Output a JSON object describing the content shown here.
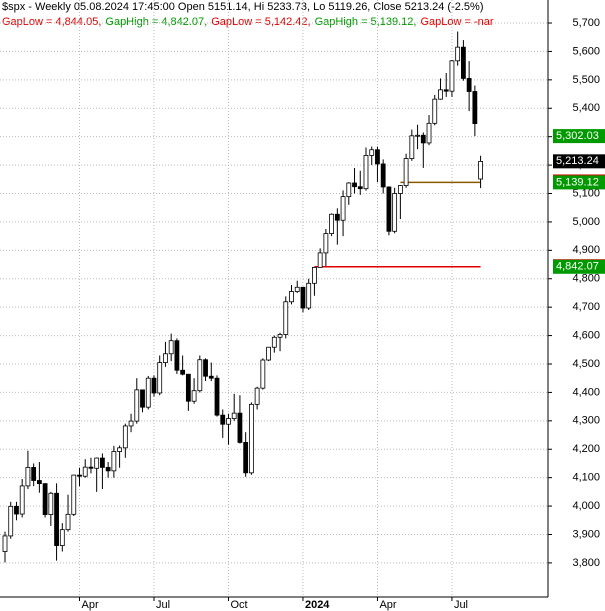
{
  "chart_data": {
    "type": "candlestick",
    "title": "$spx - Weekly 05.08.2024 17:45:00 Open 5151.14, Hi 5233.73, Lo 5119.26, Close 5213.24 (-2.5%)",
    "legend": [
      {
        "text": "GapLow = 4,844.05,",
        "color": "#e00000"
      },
      {
        "text": "GapHigh = 4,842.07,",
        "color": "#009900"
      },
      {
        "text": "GapLow = 5,142.42,",
        "color": "#e00000"
      },
      {
        "text": "GapHigh = 5,139.12,",
        "color": "#009900"
      },
      {
        "text": "GapLow = -nar",
        "color": "#e00000"
      }
    ],
    "categories": [
      null,
      null,
      null,
      null,
      null,
      null,
      null,
      null,
      null,
      null,
      null,
      null,
      null,
      "Apr",
      null,
      null,
      null,
      null,
      null,
      null,
      null,
      null,
      null,
      null,
      null,
      null,
      "Jul",
      null,
      null,
      null,
      null,
      null,
      null,
      null,
      null,
      null,
      null,
      null,
      null,
      "Oct",
      null,
      null,
      null,
      null,
      null,
      null,
      null,
      null,
      null,
      null,
      null,
      null,
      "2024",
      null,
      null,
      null,
      null,
      null,
      null,
      null,
      null,
      null,
      null,
      null,
      null,
      "Apr",
      null,
      null,
      null,
      null,
      null,
      null,
      null,
      null,
      null,
      null,
      null,
      null,
      "Jul",
      null,
      null,
      null,
      null,
      null
    ],
    "open": [
      3840,
      3895,
      3999,
      3972,
      4071,
      4136,
      4090,
      4079,
      3970,
      4045,
      3861,
      3917,
      3971,
      4109,
      4105,
      4137,
      4133,
      4169,
      4136,
      4124,
      4192,
      4205,
      4282,
      4299,
      4409,
      4348,
      4450,
      4398,
      4505,
      4536,
      4582,
      4478,
      4464,
      4369,
      4406,
      4515,
      4457,
      4450,
      4320,
      4288,
      4308,
      4327,
      4224,
      4117,
      4358,
      4415,
      4514,
      4559,
      4594,
      4604,
      4719,
      4755,
      4770,
      4697,
      4784,
      4840,
      4891,
      4959,
      5027,
      5006,
      5089,
      5137,
      5124,
      5117,
      5234,
      5254,
      5204,
      5123,
      4967,
      5100,
      5128,
      5223,
      5303,
      5305,
      5278,
      5347,
      5432,
      5465,
      5460,
      5567,
      5615,
      5505,
      5459,
      5151
    ],
    "high": [
      3910,
      4015,
      4015,
      4095,
      4195,
      4150,
      4155,
      4080,
      4050,
      4080,
      3940,
      4040,
      4110,
      4135,
      4165,
      4170,
      4171,
      4185,
      4155,
      4212,
      4213,
      4290,
      4325,
      4450,
      4410,
      4458,
      4460,
      4530,
      4578,
      4607,
      4590,
      4530,
      4465,
      4450,
      4530,
      4520,
      4505,
      4460,
      4340,
      4325,
      4395,
      4390,
      4260,
      4365,
      4420,
      4520,
      4560,
      4600,
      4610,
      4738,
      4778,
      4793,
      4770,
      4800,
      4842,
      4907,
      4975,
      5030,
      5048,
      5111,
      5140,
      5190,
      5180,
      5262,
      5265,
      5265,
      5220,
      5125,
      5120,
      5130,
      5240,
      5325,
      5342,
      5315,
      5376,
      5447,
      5505,
      5524,
      5570,
      5670,
      5640,
      5566,
      5480,
      5233
    ],
    "low": [
      3802,
      3885,
      3950,
      3960,
      4060,
      4070,
      4047,
      3960,
      3930,
      3808,
      3840,
      3910,
      3965,
      4070,
      4100,
      4115,
      4050,
      4060,
      4100,
      4100,
      4135,
      4170,
      4260,
      4290,
      4330,
      4340,
      4385,
      4390,
      4490,
      4510,
      4465,
      4460,
      4335,
      4360,
      4400,
      4440,
      4440,
      4315,
      4240,
      4216,
      4300,
      4220,
      4103,
      4110,
      4340,
      4410,
      4510,
      4540,
      4545,
      4590,
      4710,
      4750,
      4682,
      4690,
      4740,
      4844,
      4845,
      4950,
      4920,
      4950,
      5060,
      5100,
      5095,
      5110,
      5200,
      5140,
      5100,
      4953,
      4960,
      5010,
      5120,
      5215,
      5256,
      5190,
      5270,
      5340,
      5430,
      5440,
      5440,
      5550,
      5497,
      5390,
      5302,
      5119
    ],
    "close": [
      3895,
      3999,
      3972,
      4071,
      4136,
      4090,
      4079,
      3970,
      4045,
      3861,
      3917,
      3971,
      4109,
      4105,
      4137,
      4133,
      4169,
      4136,
      4124,
      4192,
      4205,
      4282,
      4299,
      4409,
      4348,
      4450,
      4398,
      4505,
      4536,
      4582,
      4478,
      4464,
      4369,
      4406,
      4515,
      4457,
      4450,
      4320,
      4288,
      4308,
      4327,
      4224,
      4117,
      4358,
      4415,
      4514,
      4559,
      4594,
      4604,
      4719,
      4755,
      4770,
      4697,
      4784,
      4840,
      4891,
      4959,
      5027,
      5006,
      5089,
      5137,
      5124,
      5117,
      5234,
      5254,
      5204,
      5123,
      4967,
      5100,
      5128,
      5223,
      5303,
      5305,
      5278,
      5347,
      5432,
      5465,
      5460,
      5567,
      5615,
      5505,
      5459,
      5346,
      5213
    ],
    "gap_lines": [
      {
        "value": 4842.07,
        "color": "#e00000"
      },
      {
        "value": 5139.12,
        "color": "#8b5a00"
      }
    ],
    "price_labels": [
      {
        "value": 5302.03,
        "label": "5,302.03",
        "color": "#009900"
      },
      {
        "value": 5213.24,
        "label": "5,213.24",
        "color": "#000000"
      },
      {
        "value": 5142.42,
        "label": "5,142.42",
        "color": "#e00000"
      },
      {
        "value": 5139.12,
        "label": "5,139.12",
        "color": "#009900"
      },
      {
        "value": 4844.05,
        "label": "4,844.05",
        "color": "#e00000"
      },
      {
        "value": 4842.07,
        "label": "4,842.07",
        "color": "#009900"
      }
    ],
    "ylim": [
      3680,
      5781
    ],
    "yticks": [
      {
        "value": 3800,
        "label": "3,800"
      },
      {
        "value": 3900,
        "label": "3,900"
      },
      {
        "value": 4000,
        "label": "4,000"
      },
      {
        "value": 4100,
        "label": "4,100"
      },
      {
        "value": 4200,
        "label": "4,200"
      },
      {
        "value": 4300,
        "label": "4,300"
      },
      {
        "value": 4400,
        "label": "4,400"
      },
      {
        "value": 4500,
        "label": "4,500"
      },
      {
        "value": 4600,
        "label": "4,600"
      },
      {
        "value": 4700,
        "label": "4,700"
      },
      {
        "value": 4800,
        "label": "4,800"
      },
      {
        "value": 4900,
        "label": "4,900"
      },
      {
        "value": 5000,
        "label": "5,000"
      },
      {
        "value": 5100,
        "label": "5,100"
      },
      {
        "value": 5200,
        "label": "5,200"
      },
      {
        "value": 5300,
        "label": "5,300"
      },
      {
        "value": 5400,
        "label": "5,400"
      },
      {
        "value": 5500,
        "label": "5,500"
      },
      {
        "value": 5600,
        "label": "5,600"
      },
      {
        "value": 5700,
        "label": "5,700"
      }
    ],
    "grid": true
  }
}
